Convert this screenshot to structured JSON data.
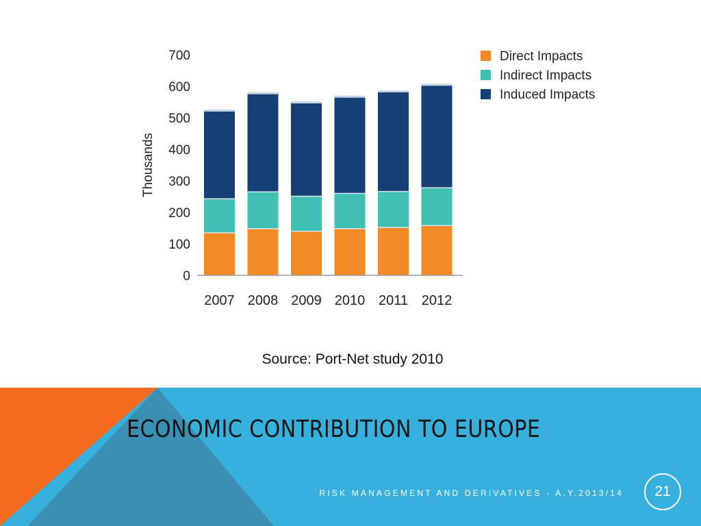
{
  "chart_data": {
    "type": "bar",
    "stacked": true,
    "categories": [
      "2007",
      "2008",
      "2009",
      "2010",
      "2011",
      "2012"
    ],
    "series": [
      {
        "name": "Direct Impacts",
        "color": "#f28a27",
        "values": [
          135,
          148,
          140,
          148,
          152,
          158
        ]
      },
      {
        "name": "Indirect Impacts",
        "color": "#41bfb3",
        "values": [
          108,
          117,
          111,
          112,
          114,
          120
        ]
      },
      {
        "name": "Induced Impacts",
        "color": "#163f73",
        "values": [
          280,
          313,
          298,
          307,
          318,
          327
        ]
      }
    ],
    "ylabel": "Thousands",
    "xlabel": "",
    "title": "",
    "ylim": [
      0,
      700
    ],
    "yticks": [
      0,
      100,
      200,
      300,
      400,
      500,
      600,
      700
    ],
    "grid": false,
    "legend": "top-right"
  },
  "source": "Source: Port-Net study 2010",
  "slide": {
    "title": "ECONOMIC CONTRIBUTION TO EUROPE",
    "subtitle": "RISK MANAGEMENT AND DERIVATIVES - A.Y.2013/14",
    "page_number": "21"
  },
  "colors": {
    "band": "#38b0de",
    "orange_triangle": "#f46a1f",
    "dark_triangle": "#3a8fb2"
  }
}
